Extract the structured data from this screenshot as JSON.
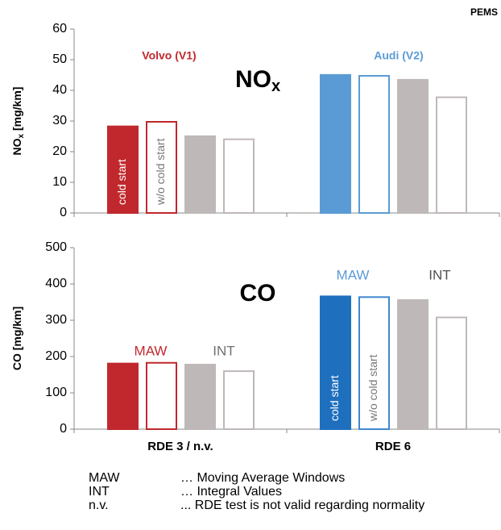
{
  "header": "PEMS",
  "chart_data": [
    {
      "type": "bar",
      "title": "NO",
      "title_sub": "x",
      "ylabel": "NO",
      "ylabel_sub": "x",
      "ylabel_unit": " [mg/km]",
      "categories": [
        null,
        null
      ],
      "ylim": [
        0,
        60
      ],
      "yticks": [
        0,
        10,
        20,
        30,
        40,
        50,
        60
      ],
      "series": [
        {
          "labels": [
            "cold start",
            null
          ],
          "colors": [
            "#c0282d",
            "#5b9bd5"
          ],
          "fill": true,
          "values": [
            28.5,
            45.3
          ]
        },
        {
          "labels": [
            "w/o cold start",
            null
          ],
          "colors": [
            "#c0282d",
            "#5b9bd5"
          ],
          "fill": false,
          "values": [
            30,
            45
          ]
        },
        {
          "colors": [
            "#bfb8b8",
            "#bfb8b8"
          ],
          "fill": true,
          "values": [
            25.3,
            43.7
          ]
        },
        {
          "colors": [
            "#bfb8b8",
            "#bfb8b8"
          ],
          "fill": false,
          "values": [
            24.3,
            38
          ]
        }
      ],
      "annotations": [
        {
          "text": "Volvo (V1)",
          "color": "#c0282d"
        },
        {
          "text": "Audi (V2)",
          "color": "#5b9bd5"
        }
      ]
    },
    {
      "type": "bar",
      "title": "CO",
      "ylabel": "CO [mg/km]",
      "categories": [
        "RDE 3 / n.v.",
        "RDE 6"
      ],
      "ylim": [
        0,
        500
      ],
      "yticks": [
        0,
        100,
        200,
        300,
        400,
        500
      ],
      "series": [
        {
          "labels": [
            null,
            "cold start"
          ],
          "colors": [
            "#c0282d",
            "#1f6fbf"
          ],
          "fill": true,
          "values": [
            183,
            368
          ]
        },
        {
          "labels": [
            null,
            "w/o cold start"
          ],
          "colors": [
            "#c0282d",
            "#3f88cf"
          ],
          "fill": false,
          "values": [
            185,
            366
          ]
        },
        {
          "colors": [
            "#bfb8b8",
            "#bfb8b8"
          ],
          "fill": true,
          "values": [
            180,
            358
          ]
        },
        {
          "colors": [
            "#bfb8b8",
            "#bfb8b8"
          ],
          "fill": false,
          "values": [
            162,
            310
          ]
        }
      ],
      "annotations": [
        {
          "text": "MAW",
          "color": "#c0282d"
        },
        {
          "text": "INT",
          "color": "#707070"
        },
        {
          "text": "MAW",
          "color": "#5b9bd5"
        },
        {
          "text": "INT",
          "color": "#505050"
        }
      ]
    }
  ],
  "notes": [
    [
      "MAW",
      "… Moving Average Windows"
    ],
    [
      "INT",
      "… Integral Values"
    ],
    [
      "n.v.",
      "... RDE test is not valid regarding normality"
    ]
  ]
}
